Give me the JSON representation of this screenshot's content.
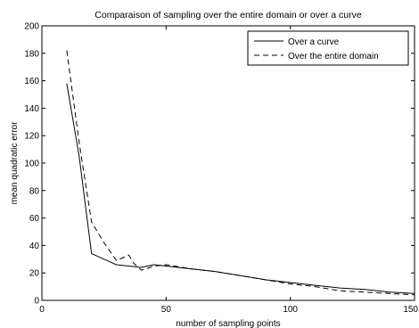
{
  "chart_data": {
    "type": "line",
    "title": "Comparaison of sampling over the entire domain or over a curve",
    "xlabel": "number of sampling points",
    "ylabel": "mean quadratic error",
    "xlim": [
      0,
      150
    ],
    "ylim": [
      0,
      200
    ],
    "x_ticks": [
      0,
      50,
      100,
      150
    ],
    "x_tick_labels": [
      "0",
      "50",
      "100",
      "150"
    ],
    "y_ticks": [
      0,
      20,
      40,
      60,
      80,
      100,
      120,
      140,
      160,
      180,
      200
    ],
    "y_tick_labels": [
      "0",
      "20",
      "40",
      "60",
      "80",
      "100",
      "120",
      "140",
      "160",
      "180",
      "200"
    ],
    "grid": false,
    "legend_position": "top-right",
    "series": [
      {
        "name": "Over a curve",
        "style": "solid",
        "color": "#000000",
        "x": [
          10,
          15,
          20,
          25,
          30,
          35,
          40,
          45,
          50,
          60,
          70,
          80,
          90,
          100,
          110,
          120,
          130,
          140,
          150
        ],
        "y": [
          158,
          105,
          34,
          30,
          26,
          25,
          24,
          26,
          25,
          23,
          21,
          18,
          15,
          13,
          11,
          9,
          8,
          6,
          5
        ]
      },
      {
        "name": "Over the entire domain",
        "style": "dashed",
        "color": "#000000",
        "x": [
          10,
          15,
          20,
          25,
          30,
          35,
          37,
          40,
          42,
          45,
          50,
          60,
          70,
          80,
          90,
          100,
          110,
          120,
          130,
          140,
          150
        ],
        "y": [
          182,
          115,
          57,
          42,
          29,
          33,
          27,
          22,
          23,
          25,
          26,
          23,
          21,
          18,
          15,
          12,
          10,
          7,
          6,
          5,
          4
        ]
      }
    ]
  }
}
